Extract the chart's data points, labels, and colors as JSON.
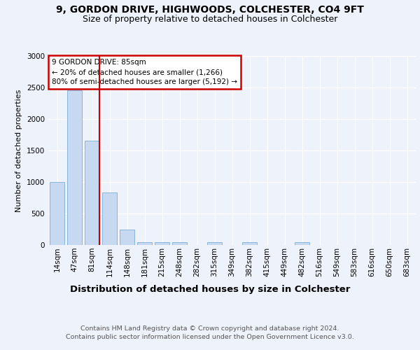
{
  "title1": "9, GORDON DRIVE, HIGHWOODS, COLCHESTER, CO4 9FT",
  "title2": "Size of property relative to detached houses in Colchester",
  "xlabel": "Distribution of detached houses by size in Colchester",
  "ylabel": "Number of detached properties",
  "categories": [
    "14sqm",
    "47sqm",
    "81sqm",
    "114sqm",
    "148sqm",
    "181sqm",
    "215sqm",
    "248sqm",
    "282sqm",
    "315sqm",
    "349sqm",
    "382sqm",
    "415sqm",
    "449sqm",
    "482sqm",
    "516sqm",
    "549sqm",
    "583sqm",
    "616sqm",
    "650sqm",
    "683sqm"
  ],
  "values": [
    1000,
    2450,
    1650,
    830,
    250,
    50,
    50,
    50,
    0,
    50,
    0,
    50,
    0,
    0,
    50,
    0,
    0,
    0,
    0,
    0,
    0
  ],
  "bar_color": "#c6d9f1",
  "bar_edge_color": "#7bafd4",
  "highlight_index": 2,
  "highlight_color": "#cc0000",
  "annotation_title": "9 GORDON DRIVE: 85sqm",
  "annotation_line1": "← 20% of detached houses are smaller (1,266)",
  "annotation_line2": "80% of semi-detached houses are larger (5,192) →",
  "annotation_box_color": "#cc0000",
  "ylim": [
    0,
    3000
  ],
  "yticks": [
    0,
    500,
    1000,
    1500,
    2000,
    2500,
    3000
  ],
  "background_color": "#eef2fa",
  "plot_bg_color": "#eef2fa",
  "footer1": "Contains HM Land Registry data © Crown copyright and database right 2024.",
  "footer2": "Contains public sector information licensed under the Open Government Licence v3.0.",
  "title1_fontsize": 10,
  "title2_fontsize": 9,
  "xlabel_fontsize": 9.5,
  "ylabel_fontsize": 8,
  "tick_fontsize": 7.5,
  "annotation_fontsize": 7.5,
  "footer_fontsize": 6.8
}
